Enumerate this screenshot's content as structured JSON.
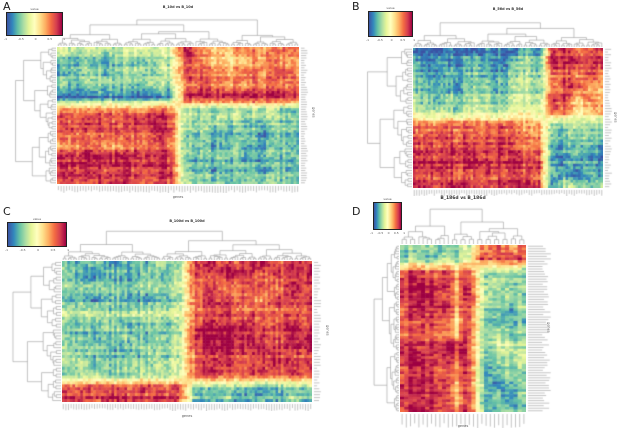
{
  "panel_labels": [
    "A",
    "B",
    "C",
    "D"
  ],
  "legend": {
    "title": "value",
    "ticks": [
      "-1",
      "-0.5",
      "0",
      "0.5",
      "1"
    ]
  },
  "axes": {
    "xlabel": "genes",
    "ylabel": "genes"
  },
  "colormap": {
    "name": "spectral-reversed",
    "domain": [
      -1,
      1
    ],
    "stops": [
      "#3b53a4",
      "#3288bd",
      "#66c2a5",
      "#abdda4",
      "#e6f598",
      "#ffffbf",
      "#fee08b",
      "#fdae61",
      "#f46d43",
      "#d53e4f",
      "#9e0142"
    ]
  },
  "chart_data": [
    {
      "panel": "A",
      "type": "heatmap",
      "title": "B_10d vs B_10d",
      "legend_title": "value",
      "colorbar_ticks": [
        -1,
        -0.5,
        0,
        0.5,
        1
      ],
      "xlabel": "genes",
      "ylabel": "genes",
      "clustered": "rows and columns (dendrograms)",
      "n_cols": 88,
      "n_rows": 56,
      "coarse_matrix": [
        [
          -0.2,
          -0.4,
          -0.3,
          -0.4,
          -0.3,
          -0.2,
          -0.3,
          -0.2,
          0.9,
          0.4,
          0.2,
          0.3,
          0.5,
          0.4,
          0.5,
          0.6
        ],
        [
          -0.5,
          -0.6,
          -0.5,
          -0.6,
          -0.4,
          -0.5,
          -0.3,
          -0.4,
          0.8,
          0.5,
          0.3,
          0.2,
          0.4,
          0.6,
          0.5,
          0.5
        ],
        [
          -0.7,
          -0.6,
          -0.5,
          -0.6,
          -0.5,
          -0.4,
          -0.5,
          -0.3,
          0.7,
          0.6,
          0.5,
          0.4,
          0.6,
          0.5,
          0.7,
          0.6
        ],
        [
          -0.4,
          -0.5,
          -0.4,
          -0.3,
          -0.4,
          -0.5,
          -0.2,
          -0.4,
          0.6,
          0.7,
          0.6,
          0.5,
          0.5,
          0.7,
          0.6,
          0.7
        ],
        [
          -0.95,
          -0.9,
          -0.95,
          -0.85,
          -0.9,
          -0.95,
          -0.8,
          -0.9,
          0.95,
          0.9,
          0.85,
          0.9,
          0.95,
          0.9,
          0.95,
          0.9
        ],
        [
          0.5,
          0.6,
          0.5,
          0.7,
          0.6,
          0.5,
          0.8,
          0.6,
          -0.3,
          -0.4,
          -0.5,
          -0.3,
          -0.4,
          -0.2,
          -0.4,
          -0.5
        ],
        [
          0.7,
          0.6,
          0.8,
          0.7,
          0.6,
          0.9,
          0.95,
          0.7,
          -0.5,
          -0.6,
          -0.4,
          -0.5,
          -0.7,
          -0.5,
          -0.6,
          -0.4
        ],
        [
          0.6,
          0.7,
          0.6,
          0.8,
          0.7,
          0.6,
          0.9,
          0.8,
          -0.6,
          -0.5,
          -0.7,
          -0.6,
          -0.5,
          -0.8,
          -0.5,
          -0.6
        ],
        [
          0.5,
          0.6,
          0.7,
          0.6,
          0.5,
          0.7,
          0.8,
          0.6,
          -0.4,
          -0.5,
          -0.6,
          -0.4,
          -0.6,
          -0.5,
          -0.4,
          -0.5
        ],
        [
          0.9,
          0.85,
          0.9,
          0.95,
          0.9,
          0.85,
          0.9,
          0.8,
          -0.6,
          -0.7,
          -0.5,
          -0.6,
          -0.8,
          -0.6,
          -0.7,
          -0.5
        ],
        [
          0.8,
          0.9,
          0.85,
          0.8,
          0.9,
          0.8,
          0.85,
          0.9,
          -0.5,
          -0.6,
          -0.7,
          -0.5,
          -0.6,
          -0.7,
          -0.5,
          -0.6
        ],
        [
          0.7,
          0.8,
          0.7,
          0.9,
          0.8,
          0.7,
          0.8,
          0.7,
          -0.4,
          -0.5,
          -0.4,
          -0.6,
          -0.5,
          -0.4,
          -0.5,
          -0.4
        ]
      ]
    },
    {
      "panel": "B",
      "type": "heatmap",
      "title": "B_56d vs B_56d",
      "legend_title": "value",
      "colorbar_ticks": [
        -1,
        -0.5,
        0,
        0.5,
        1
      ],
      "xlabel": "genes",
      "ylabel": "genes",
      "clustered": "rows and columns (dendrograms)",
      "n_cols": 76,
      "n_rows": 52,
      "coarse_matrix": [
        [
          -0.9,
          -0.8,
          -0.95,
          -0.7,
          -0.85,
          -0.9,
          -0.6,
          -0.8,
          -0.9,
          -0.5,
          -0.7,
          0.9,
          0.95,
          0.7,
          0.8,
          0.9
        ],
        [
          -0.8,
          -0.9,
          -0.7,
          -0.85,
          -0.8,
          -0.6,
          -0.8,
          -0.9,
          -0.7,
          -0.4,
          -0.6,
          0.95,
          0.8,
          0.9,
          0.7,
          0.85
        ],
        [
          -0.6,
          -0.7,
          -0.8,
          -0.6,
          -0.7,
          -0.5,
          -0.6,
          -0.7,
          -0.5,
          -0.3,
          -0.5,
          0.6,
          0.7,
          0.5,
          0.8,
          0.6
        ],
        [
          -0.5,
          -0.6,
          -0.5,
          -0.7,
          -0.6,
          -0.4,
          -0.5,
          -0.6,
          -0.4,
          -0.2,
          -0.4,
          0.5,
          0.8,
          0.9,
          0.4,
          0.5
        ],
        [
          -0.4,
          -0.5,
          -0.6,
          -0.4,
          -0.5,
          -0.3,
          -0.4,
          -0.5,
          -0.3,
          -0.2,
          -0.3,
          0.9,
          0.8,
          0.3,
          0.6,
          0.4
        ],
        [
          -0.3,
          -0.4,
          -0.3,
          -0.5,
          -0.4,
          -0.2,
          -0.3,
          -0.4,
          -0.2,
          -0.1,
          -0.2,
          0.7,
          0.6,
          0.2,
          0.3,
          0.5
        ],
        [
          0.5,
          0.6,
          0.5,
          0.7,
          0.6,
          0.5,
          0.6,
          0.7,
          0.5,
          0.4,
          0.5,
          -0.4,
          -0.5,
          -0.3,
          -0.4,
          -0.5
        ],
        [
          0.6,
          0.7,
          0.8,
          0.6,
          0.7,
          0.6,
          0.7,
          0.8,
          0.6,
          0.5,
          0.6,
          -0.5,
          -0.6,
          -0.4,
          -0.5,
          -0.6
        ],
        [
          0.7,
          0.8,
          0.7,
          0.9,
          0.8,
          0.7,
          0.8,
          0.9,
          0.7,
          0.6,
          0.7,
          -0.6,
          -0.7,
          -0.5,
          -0.6,
          -0.7
        ],
        [
          0.9,
          0.95,
          0.9,
          0.85,
          0.9,
          0.95,
          0.85,
          0.9,
          0.95,
          0.8,
          0.9,
          -0.7,
          -0.8,
          -0.6,
          -0.7,
          -0.8
        ],
        [
          0.8,
          0.7,
          0.9,
          0.8,
          0.7,
          0.8,
          0.9,
          0.7,
          0.8,
          0.7,
          0.8,
          -0.5,
          -0.6,
          -0.8,
          -0.5,
          -0.6
        ],
        [
          0.7,
          0.8,
          0.6,
          0.9,
          0.8,
          0.7,
          0.6,
          0.8,
          0.7,
          0.9,
          0.7,
          -0.9,
          -0.4,
          -0.5,
          -0.7,
          -0.4
        ]
      ]
    },
    {
      "panel": "C",
      "type": "heatmap",
      "title": "B_100d vs B_100d",
      "legend_title": "value",
      "colorbar_ticks": [
        -1,
        -0.5,
        0,
        0.5,
        1
      ],
      "xlabel": "genes",
      "ylabel": "genes",
      "clustered": "rows and columns (dendrograms)",
      "n_cols": 96,
      "n_rows": 48,
      "coarse_matrix": [
        [
          -0.6,
          -0.8,
          -0.5,
          -0.9,
          -0.6,
          -0.7,
          -0.5,
          -0.6,
          0.7,
          0.8,
          0.6,
          0.7,
          0.9,
          0.6,
          0.8,
          0.7
        ],
        [
          -0.5,
          -0.7,
          -0.9,
          -0.6,
          -0.8,
          -0.5,
          -0.7,
          -0.5,
          0.8,
          0.6,
          0.9,
          0.8,
          0.6,
          0.8,
          0.7,
          0.9
        ],
        [
          -0.4,
          -0.5,
          -0.4,
          -0.6,
          -0.5,
          -0.4,
          -0.5,
          -0.3,
          0.6,
          0.7,
          0.5,
          0.6,
          0.8,
          0.5,
          0.9,
          0.6
        ],
        [
          -0.7,
          -0.6,
          -0.8,
          -0.5,
          -0.7,
          -0.8,
          -0.6,
          -0.5,
          0.7,
          0.9,
          0.8,
          0.7,
          0.5,
          0.9,
          0.7,
          0.8
        ],
        [
          -0.3,
          -0.4,
          -0.3,
          -0.5,
          -0.4,
          -0.3,
          -0.4,
          -0.2,
          0.5,
          0.6,
          0.7,
          0.5,
          0.7,
          0.6,
          0.5,
          0.7
        ],
        [
          -0.5,
          -0.6,
          -0.5,
          -0.4,
          -0.6,
          -0.5,
          -0.6,
          -0.4,
          0.8,
          0.95,
          0.9,
          0.95,
          0.7,
          0.8,
          0.9,
          0.7
        ],
        [
          -0.6,
          -0.5,
          -0.7,
          -0.6,
          -0.5,
          -0.7,
          -0.5,
          -0.5,
          0.9,
          0.95,
          0.95,
          0.9,
          0.8,
          0.7,
          0.8,
          0.9
        ],
        [
          -0.4,
          -0.6,
          -0.5,
          -0.7,
          -0.6,
          -0.4,
          -0.6,
          -0.3,
          0.7,
          0.9,
          0.95,
          0.8,
          0.9,
          0.8,
          0.7,
          0.8
        ],
        [
          -0.5,
          -0.4,
          -0.6,
          -0.5,
          -0.4,
          -0.6,
          -0.4,
          -0.4,
          0.6,
          0.7,
          0.8,
          0.6,
          0.7,
          0.9,
          0.6,
          0.7
        ],
        [
          -0.6,
          -0.5,
          -0.4,
          -0.6,
          -0.5,
          -0.4,
          -0.5,
          -0.3,
          0.7,
          0.8,
          0.6,
          0.7,
          0.8,
          0.6,
          0.7,
          0.6
        ],
        [
          0.8,
          0.7,
          0.9,
          0.8,
          0.7,
          0.9,
          0.7,
          0.8,
          -0.5,
          -0.6,
          -0.4,
          -0.5,
          -0.7,
          -0.5,
          -0.6,
          -0.4
        ],
        [
          0.9,
          0.8,
          0.7,
          0.9,
          0.8,
          0.7,
          0.9,
          0.7,
          -0.6,
          -0.7,
          -0.5,
          -0.8,
          -0.5,
          -0.6,
          -0.4,
          -0.7
        ]
      ]
    },
    {
      "panel": "D",
      "type": "heatmap",
      "title": "B_186d vs B_186d",
      "legend_title": "value",
      "colorbar_ticks": [
        -1,
        -0.5,
        0,
        0.5,
        1
      ],
      "xlabel": "genes",
      "ylabel": "genes",
      "clustered": "rows and columns (dendrograms)",
      "n_cols": 30,
      "n_rows": 66,
      "coarse_matrix": [
        [
          -0.4,
          -0.5,
          -0.3,
          -0.5,
          -0.4,
          -0.2,
          0.5,
          0.7,
          0.4,
          0.6
        ],
        [
          -0.6,
          -0.4,
          -0.6,
          -0.3,
          -0.5,
          -0.1,
          0.8,
          0.6,
          0.9,
          0.7
        ],
        [
          0.7,
          0.8,
          0.6,
          0.8,
          0.3,
          0.7,
          -0.4,
          -0.5,
          -0.3,
          -0.6
        ],
        [
          0.8,
          0.9,
          0.8,
          0.9,
          0.4,
          0.8,
          -0.5,
          -0.4,
          -0.6,
          -0.5
        ],
        [
          0.9,
          0.8,
          0.95,
          0.7,
          0.3,
          0.9,
          -0.3,
          -0.6,
          -0.4,
          -0.7
        ],
        [
          0.7,
          0.9,
          0.8,
          0.95,
          0.5,
          0.7,
          -0.6,
          -0.5,
          -0.7,
          -0.4
        ],
        [
          0.8,
          0.7,
          0.9,
          0.8,
          0.2,
          0.8,
          -0.4,
          -0.7,
          -0.5,
          -0.6
        ],
        [
          0.6,
          0.8,
          0.7,
          0.6,
          0.4,
          0.9,
          -0.5,
          -0.3,
          -0.6,
          -0.4
        ],
        [
          0.9,
          0.7,
          0.8,
          0.9,
          0.95,
          0.6,
          -0.6,
          -0.4,
          -0.3,
          -0.5
        ],
        [
          0.8,
          0.9,
          0.7,
          0.8,
          0.6,
          0.7,
          -0.7,
          -0.6,
          -0.5,
          -0.3
        ],
        [
          0.7,
          0.8,
          0.9,
          0.7,
          0.5,
          0.8,
          -0.8,
          -0.7,
          -0.4,
          -0.6
        ],
        [
          0.9,
          0.95,
          0.8,
          0.9,
          0.4,
          0.7,
          -0.5,
          -0.8,
          -0.6,
          -0.4
        ],
        [
          0.95,
          0.8,
          0.9,
          0.95,
          0.3,
          0.8,
          -0.7,
          -0.5,
          -0.8,
          -0.5
        ],
        [
          0.8,
          0.9,
          0.95,
          0.8,
          0.5,
          0.9,
          -0.6,
          -0.7,
          -0.5,
          -0.7
        ]
      ]
    }
  ]
}
